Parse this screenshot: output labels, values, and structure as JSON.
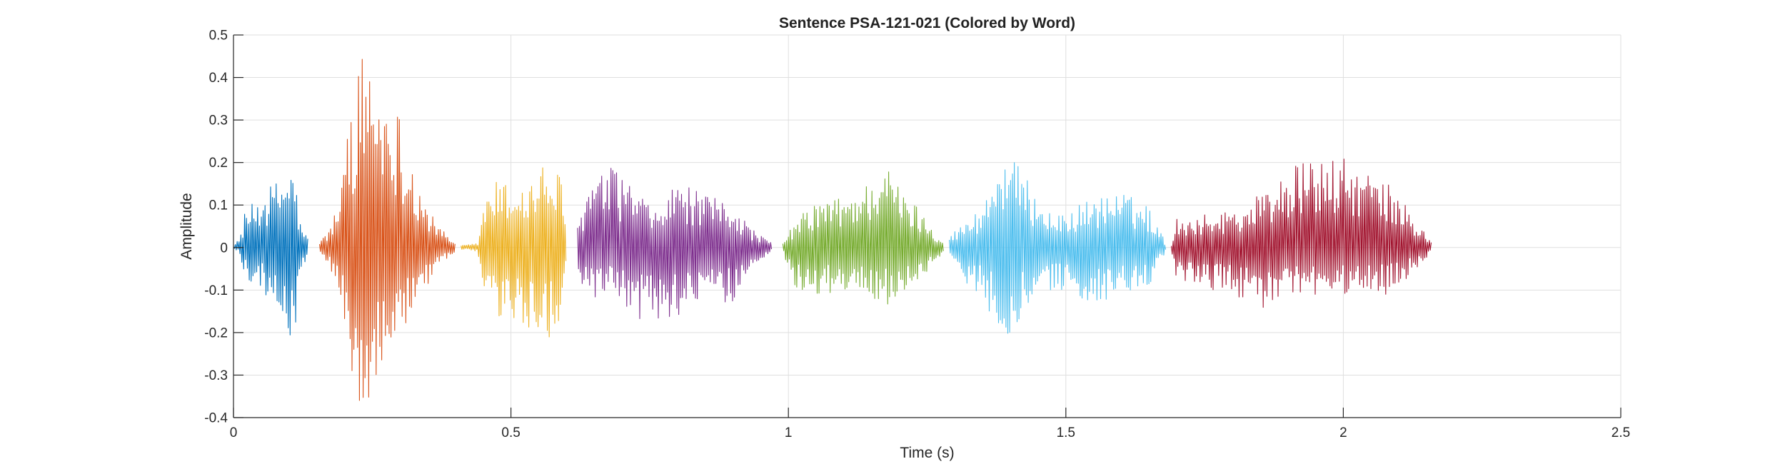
{
  "chart_data": {
    "type": "line",
    "title": "Sentence PSA-121-021 (Colored by Word)",
    "xlabel": "Time (s)",
    "ylabel": "Amplitude",
    "xlim": [
      0,
      2.5
    ],
    "ylim": [
      -0.4,
      0.5
    ],
    "xticks": [
      0,
      0.5,
      1,
      1.5,
      2,
      2.5
    ],
    "xtick_labels": [
      "0",
      "0.5",
      "1",
      "1.5",
      "2",
      "2.5"
    ],
    "yticks": [
      -0.4,
      -0.3,
      -0.2,
      -0.1,
      0,
      0.1,
      0.2,
      0.3,
      0.4,
      0.5
    ],
    "ytick_labels": [
      "-0.4",
      "-0.3",
      "-0.2",
      "-0.1",
      "0",
      "0.1",
      "0.2",
      "0.3",
      "0.4",
      "0.5"
    ],
    "grid": true,
    "series": [
      {
        "color": "#0072BD",
        "x_range": [
          0.0,
          0.135
        ],
        "envelope": [
          {
            "t": 0.0,
            "max": 0.005,
            "min": -0.005
          },
          {
            "t": 0.01,
            "max": 0.02,
            "min": -0.01
          },
          {
            "t": 0.02,
            "max": 0.08,
            "min": -0.07
          },
          {
            "t": 0.05,
            "max": 0.13,
            "min": -0.1
          },
          {
            "t": 0.08,
            "max": 0.16,
            "min": -0.15
          },
          {
            "t": 0.1,
            "max": 0.19,
            "min": -0.21
          },
          {
            "t": 0.11,
            "max": 0.19,
            "min": -0.24
          },
          {
            "t": 0.12,
            "max": 0.06,
            "min": -0.06
          },
          {
            "t": 0.135,
            "max": 0.02,
            "min": -0.02
          }
        ]
      },
      {
        "color": "#D95319",
        "x_range": [
          0.155,
          0.4
        ],
        "envelope": [
          {
            "t": 0.155,
            "max": 0.01,
            "min": -0.01
          },
          {
            "t": 0.17,
            "max": 0.04,
            "min": -0.04
          },
          {
            "t": 0.19,
            "max": 0.12,
            "min": -0.1
          },
          {
            "t": 0.21,
            "max": 0.32,
            "min": -0.27
          },
          {
            "t": 0.23,
            "max": 0.46,
            "min": -0.38
          },
          {
            "t": 0.24,
            "max": 0.48,
            "min": -0.37
          },
          {
            "t": 0.26,
            "max": 0.4,
            "min": -0.3
          },
          {
            "t": 0.29,
            "max": 0.36,
            "min": -0.27
          },
          {
            "t": 0.32,
            "max": 0.22,
            "min": -0.18
          },
          {
            "t": 0.34,
            "max": 0.12,
            "min": -0.11
          },
          {
            "t": 0.37,
            "max": 0.05,
            "min": -0.04
          },
          {
            "t": 0.4,
            "max": 0.01,
            "min": -0.01
          }
        ]
      },
      {
        "color": "#EDB120",
        "x_range": [
          0.41,
          0.6
        ],
        "envelope": [
          {
            "t": 0.41,
            "max": 0.005,
            "min": -0.005
          },
          {
            "t": 0.44,
            "max": 0.01,
            "min": -0.01
          },
          {
            "t": 0.45,
            "max": 0.1,
            "min": -0.12
          },
          {
            "t": 0.47,
            "max": 0.16,
            "min": -0.17
          },
          {
            "t": 0.5,
            "max": 0.15,
            "min": -0.18
          },
          {
            "t": 0.53,
            "max": 0.15,
            "min": -0.2
          },
          {
            "t": 0.56,
            "max": 0.2,
            "min": -0.22
          },
          {
            "t": 0.59,
            "max": 0.17,
            "min": -0.19
          },
          {
            "t": 0.6,
            "max": 0.02,
            "min": -0.02
          }
        ]
      },
      {
        "color": "#7E2F8E",
        "x_range": [
          0.62,
          0.97
        ],
        "envelope": [
          {
            "t": 0.62,
            "max": 0.06,
            "min": -0.06
          },
          {
            "t": 0.64,
            "max": 0.15,
            "min": -0.14
          },
          {
            "t": 0.68,
            "max": 0.19,
            "min": -0.12
          },
          {
            "t": 0.72,
            "max": 0.15,
            "min": -0.17
          },
          {
            "t": 0.76,
            "max": 0.08,
            "min": -0.18
          },
          {
            "t": 0.8,
            "max": 0.16,
            "min": -0.16
          },
          {
            "t": 0.85,
            "max": 0.12,
            "min": -0.13
          },
          {
            "t": 0.9,
            "max": 0.11,
            "min": -0.13
          },
          {
            "t": 0.93,
            "max": 0.05,
            "min": -0.05
          },
          {
            "t": 0.97,
            "max": 0.01,
            "min": -0.01
          }
        ]
      },
      {
        "color": "#77AC30",
        "x_range": [
          0.99,
          1.28
        ],
        "envelope": [
          {
            "t": 0.99,
            "max": 0.01,
            "min": -0.01
          },
          {
            "t": 1.01,
            "max": 0.06,
            "min": -0.09
          },
          {
            "t": 1.05,
            "max": 0.11,
            "min": -0.12
          },
          {
            "t": 1.1,
            "max": 0.12,
            "min": -0.1
          },
          {
            "t": 1.15,
            "max": 0.16,
            "min": -0.12
          },
          {
            "t": 1.17,
            "max": 0.22,
            "min": -0.14
          },
          {
            "t": 1.2,
            "max": 0.14,
            "min": -0.12
          },
          {
            "t": 1.24,
            "max": 0.09,
            "min": -0.07
          },
          {
            "t": 1.28,
            "max": 0.01,
            "min": -0.01
          }
        ]
      },
      {
        "color": "#4DBEEE",
        "x_range": [
          1.29,
          1.68
        ],
        "envelope": [
          {
            "t": 1.29,
            "max": 0.03,
            "min": -0.03
          },
          {
            "t": 1.31,
            "max": 0.05,
            "min": -0.07
          },
          {
            "t": 1.35,
            "max": 0.1,
            "min": -0.12
          },
          {
            "t": 1.39,
            "max": 0.24,
            "min": -0.22
          },
          {
            "t": 1.43,
            "max": 0.16,
            "min": -0.14
          },
          {
            "t": 1.48,
            "max": 0.07,
            "min": -0.1
          },
          {
            "t": 1.55,
            "max": 0.12,
            "min": -0.13
          },
          {
            "t": 1.6,
            "max": 0.13,
            "min": -0.12
          },
          {
            "t": 1.65,
            "max": 0.1,
            "min": -0.1
          },
          {
            "t": 1.68,
            "max": 0.01,
            "min": -0.01
          }
        ]
      },
      {
        "color": "#A2142F",
        "x_range": [
          1.69,
          2.16
        ],
        "envelope": [
          {
            "t": 1.69,
            "max": 0.01,
            "min": -0.01
          },
          {
            "t": 1.7,
            "max": 0.07,
            "min": -0.08
          },
          {
            "t": 1.76,
            "max": 0.08,
            "min": -0.1
          },
          {
            "t": 1.82,
            "max": 0.1,
            "min": -0.12
          },
          {
            "t": 1.87,
            "max": 0.15,
            "min": -0.15
          },
          {
            "t": 1.92,
            "max": 0.2,
            "min": -0.12
          },
          {
            "t": 2.0,
            "max": 0.21,
            "min": -0.11
          },
          {
            "t": 2.08,
            "max": 0.15,
            "min": -0.11
          },
          {
            "t": 2.12,
            "max": 0.09,
            "min": -0.07
          },
          {
            "t": 2.16,
            "max": 0.01,
            "min": -0.01
          }
        ]
      }
    ]
  }
}
